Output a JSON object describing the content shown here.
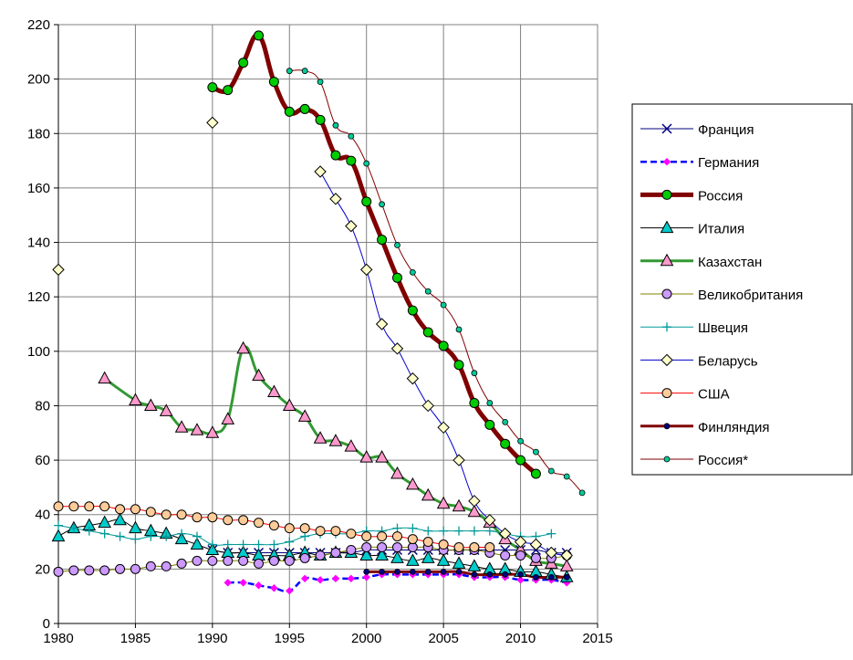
{
  "chart_data": {
    "type": "line",
    "title": "",
    "xlabel": "",
    "ylabel": "",
    "xlim": [
      1980,
      2015
    ],
    "ylim": [
      0,
      220
    ],
    "x_ticks": [
      1980,
      1985,
      1990,
      1995,
      2000,
      2005,
      2010,
      2015
    ],
    "y_ticks": [
      0,
      20,
      40,
      60,
      80,
      100,
      120,
      140,
      160,
      180,
      200,
      220
    ],
    "grid": true,
    "legend_position": "right",
    "series": [
      {
        "name": "Франция",
        "color": "#000080",
        "marker": "x",
        "marker_fill": "#000080",
        "line_width": 1,
        "points": [
          [
            1990,
            27
          ],
          [
            1991,
            26
          ],
          [
            1992,
            26
          ],
          [
            1993,
            26
          ],
          [
            1994,
            26
          ],
          [
            1995,
            26
          ],
          [
            1996,
            26
          ],
          [
            1997,
            26
          ],
          [
            1998,
            26
          ],
          [
            1999,
            26
          ],
          [
            2000,
            27
          ],
          [
            2001,
            27
          ],
          [
            2002,
            27
          ],
          [
            2003,
            27
          ],
          [
            2004,
            27
          ],
          [
            2005,
            27
          ],
          [
            2006,
            27
          ],
          [
            2007,
            27
          ],
          [
            2008,
            27
          ],
          [
            2009,
            27
          ],
          [
            2010,
            27
          ],
          [
            2011,
            27
          ],
          [
            2012,
            26
          ],
          [
            2013,
            26
          ]
        ]
      },
      {
        "name": "Германия",
        "color": "#0000ff",
        "marker": "diamond-small",
        "marker_fill": "#ff00ff",
        "line_width": 2.5,
        "dash": "7,4",
        "points": [
          [
            1991,
            15
          ],
          [
            1992,
            15
          ],
          [
            1993,
            14
          ],
          [
            1994,
            13
          ],
          [
            1995,
            12
          ],
          [
            1996,
            16.5
          ],
          [
            1997,
            16
          ],
          [
            1998,
            16.5
          ],
          [
            1999,
            16.5
          ],
          [
            2000,
            17
          ],
          [
            2001,
            18
          ],
          [
            2002,
            18
          ],
          [
            2003,
            18
          ],
          [
            2004,
            18
          ],
          [
            2005,
            18
          ],
          [
            2006,
            18
          ],
          [
            2007,
            17
          ],
          [
            2008,
            17
          ],
          [
            2009,
            17
          ],
          [
            2010,
            16
          ],
          [
            2011,
            16
          ],
          [
            2012,
            16
          ],
          [
            2013,
            15
          ]
        ]
      },
      {
        "name": "Россия",
        "color": "#800000",
        "marker": "circle",
        "marker_fill": "#00cc00",
        "line_width": 5,
        "points": [
          [
            1990,
            197
          ],
          [
            1991,
            196
          ],
          [
            1992,
            206
          ],
          [
            1993,
            216
          ],
          [
            1994,
            199
          ],
          [
            1995,
            188
          ],
          [
            1996,
            189
          ],
          [
            1997,
            185
          ],
          [
            1998,
            172
          ],
          [
            1999,
            170
          ],
          [
            2000,
            155
          ],
          [
            2001,
            141
          ],
          [
            2002,
            127
          ],
          [
            2003,
            115
          ],
          [
            2004,
            107
          ],
          [
            2005,
            102
          ],
          [
            2006,
            95
          ],
          [
            2007,
            81
          ],
          [
            2008,
            73
          ],
          [
            2009,
            66
          ],
          [
            2010,
            60
          ],
          [
            2011,
            55
          ]
        ]
      },
      {
        "name": "Италия",
        "color": "#000000",
        "marker": "triangle",
        "marker_fill": "#00cccc",
        "line_width": 1,
        "points": [
          [
            1980,
            32
          ],
          [
            1981,
            35
          ],
          [
            1982,
            36
          ],
          [
            1983,
            37
          ],
          [
            1984,
            38
          ],
          [
            1985,
            35
          ],
          [
            1986,
            34
          ],
          [
            1987,
            33
          ],
          [
            1988,
            31
          ],
          [
            1989,
            29
          ],
          [
            1990,
            27
          ],
          [
            1991,
            26
          ],
          [
            1992,
            26
          ],
          [
            1993,
            25
          ],
          [
            1994,
            25
          ],
          [
            1995,
            25
          ],
          [
            1996,
            26
          ],
          [
            1997,
            25
          ],
          [
            1998,
            26
          ],
          [
            1999,
            26
          ],
          [
            2000,
            25
          ],
          [
            2001,
            25
          ],
          [
            2002,
            24
          ],
          [
            2003,
            23
          ],
          [
            2004,
            24
          ],
          [
            2005,
            23
          ],
          [
            2006,
            22
          ],
          [
            2007,
            21
          ],
          [
            2008,
            20
          ],
          [
            2009,
            20
          ],
          [
            2010,
            19
          ],
          [
            2011,
            19
          ],
          [
            2012,
            18
          ],
          [
            2013,
            17
          ]
        ]
      },
      {
        "name": "Казахстан",
        "color": "#339933",
        "marker": "triangle",
        "marker_fill": "#ff99cc",
        "line_width": 3,
        "points": [
          [
            1983,
            90
          ],
          [
            1985,
            82
          ],
          [
            1986,
            80
          ],
          [
            1987,
            78
          ],
          [
            1988,
            72
          ],
          [
            1989,
            71
          ],
          [
            1990,
            70
          ],
          [
            1991,
            75
          ],
          [
            1992,
            101
          ],
          [
            1993,
            91
          ],
          [
            1994,
            85
          ],
          [
            1995,
            80
          ],
          [
            1996,
            76
          ],
          [
            1997,
            68
          ],
          [
            1998,
            67
          ],
          [
            1999,
            65
          ],
          [
            2000,
            61
          ],
          [
            2001,
            61
          ],
          [
            2002,
            55
          ],
          [
            2003,
            51
          ],
          [
            2004,
            47
          ],
          [
            2005,
            44
          ],
          [
            2006,
            43
          ],
          [
            2007,
            41
          ],
          [
            2008,
            37
          ],
          [
            2009,
            31
          ],
          [
            2010,
            27
          ],
          [
            2011,
            23
          ],
          [
            2012,
            22
          ],
          [
            2013,
            21
          ]
        ]
      },
      {
        "name": "Великобритания",
        "color": "#808000",
        "marker": "circle",
        "marker_fill": "#cc99ff",
        "line_width": 1,
        "points": [
          [
            1980,
            19
          ],
          [
            1981,
            19.5
          ],
          [
            1982,
            19.5
          ],
          [
            1983,
            19.5
          ],
          [
            1984,
            20
          ],
          [
            1985,
            20
          ],
          [
            1986,
            21
          ],
          [
            1987,
            21
          ],
          [
            1988,
            22
          ],
          [
            1989,
            23
          ],
          [
            1990,
            23
          ],
          [
            1991,
            23
          ],
          [
            1992,
            23
          ],
          [
            1993,
            22
          ],
          [
            1994,
            23
          ],
          [
            1995,
            23
          ],
          [
            1996,
            24
          ],
          [
            1997,
            25
          ],
          [
            1998,
            26
          ],
          [
            1999,
            27
          ],
          [
            2000,
            28
          ],
          [
            2001,
            28
          ],
          [
            2002,
            28
          ],
          [
            2003,
            28
          ],
          [
            2004,
            28
          ],
          [
            2005,
            27
          ],
          [
            2006,
            27
          ],
          [
            2007,
            27
          ],
          [
            2008,
            26
          ],
          [
            2009,
            25
          ],
          [
            2010,
            25
          ],
          [
            2011,
            24
          ],
          [
            2012,
            24
          ],
          [
            2013,
            25
          ]
        ]
      },
      {
        "name": "Швеция",
        "color": "#009999",
        "marker": "plus",
        "marker_fill": "#009999",
        "line_width": 1,
        "points": [
          [
            1980,
            36
          ],
          [
            1981,
            35
          ],
          [
            1982,
            34
          ],
          [
            1983,
            33
          ],
          [
            1984,
            32
          ],
          [
            1985,
            31
          ],
          [
            1986,
            32
          ],
          [
            1987,
            32
          ],
          [
            1988,
            33
          ],
          [
            1989,
            32
          ],
          [
            1990,
            29
          ],
          [
            1991,
            29
          ],
          [
            1992,
            29
          ],
          [
            1993,
            29
          ],
          [
            1994,
            29
          ],
          [
            1995,
            30
          ],
          [
            1996,
            32
          ],
          [
            1997,
            33
          ],
          [
            1998,
            33
          ],
          [
            1999,
            33
          ],
          [
            2000,
            34
          ],
          [
            2001,
            34
          ],
          [
            2002,
            35
          ],
          [
            2003,
            35
          ],
          [
            2004,
            34
          ],
          [
            2005,
            34
          ],
          [
            2006,
            34
          ],
          [
            2007,
            34
          ],
          [
            2008,
            34
          ],
          [
            2009,
            33
          ],
          [
            2010,
            32
          ],
          [
            2011,
            32
          ],
          [
            2012,
            33
          ]
        ]
      },
      {
        "name": "Беларусь",
        "color": "#0000cc",
        "marker": "diamond",
        "marker_fill": "#ffffcc",
        "line_width": 1,
        "points": [
          [
            1997,
            166
          ],
          [
            1998,
            156
          ],
          [
            1999,
            146
          ],
          [
            2000,
            130
          ],
          [
            2001,
            110
          ],
          [
            2002,
            101
          ],
          [
            2003,
            90
          ],
          [
            2004,
            80
          ],
          [
            2005,
            72
          ],
          [
            2006,
            60
          ],
          [
            2007,
            45
          ],
          [
            2008,
            38
          ],
          [
            2009,
            33
          ],
          [
            2010,
            30
          ],
          [
            2011,
            29
          ],
          [
            2012,
            26
          ],
          [
            2013,
            25
          ]
        ]
      },
      {
        "name": "США",
        "color": "#ff0000",
        "marker": "circle",
        "marker_fill": "#ffcc99",
        "line_width": 1,
        "points": [
          [
            1980,
            43
          ],
          [
            1981,
            43
          ],
          [
            1982,
            43
          ],
          [
            1983,
            43
          ],
          [
            1984,
            42
          ],
          [
            1985,
            42
          ],
          [
            1986,
            41
          ],
          [
            1987,
            40
          ],
          [
            1988,
            40
          ],
          [
            1989,
            39
          ],
          [
            1990,
            39
          ],
          [
            1991,
            38
          ],
          [
            1992,
            38
          ],
          [
            1993,
            37
          ],
          [
            1994,
            36
          ],
          [
            1995,
            35
          ],
          [
            1996,
            35
          ],
          [
            1997,
            34
          ],
          [
            1998,
            34
          ],
          [
            1999,
            33
          ],
          [
            2000,
            32
          ],
          [
            2001,
            32
          ],
          [
            2002,
            32
          ],
          [
            2003,
            31
          ],
          [
            2004,
            30
          ],
          [
            2005,
            29
          ],
          [
            2006,
            28
          ],
          [
            2007,
            28
          ],
          [
            2008,
            28
          ]
        ]
      },
      {
        "name": "Финляндия",
        "color": "#800000",
        "marker": "circle-small",
        "marker_fill": "#000080",
        "line_width": 3,
        "points": [
          [
            2000,
            19
          ],
          [
            2001,
            19
          ],
          [
            2002,
            19
          ],
          [
            2003,
            19
          ],
          [
            2004,
            19
          ],
          [
            2005,
            19
          ],
          [
            2006,
            19
          ],
          [
            2007,
            18
          ],
          [
            2008,
            18
          ],
          [
            2009,
            18
          ],
          [
            2010,
            18
          ],
          [
            2011,
            17
          ],
          [
            2012,
            17
          ],
          [
            2013,
            17
          ]
        ]
      },
      {
        "name": "Россия*",
        "color": "#800000",
        "marker": "circle-small",
        "marker_fill": "#00cc99",
        "line_width": 1,
        "points": [
          [
            1995,
            203
          ],
          [
            1996,
            203
          ],
          [
            1997,
            199
          ],
          [
            1998,
            183
          ],
          [
            1999,
            179
          ],
          [
            2000,
            169
          ],
          [
            2001,
            154
          ],
          [
            2002,
            139
          ],
          [
            2003,
            129
          ],
          [
            2004,
            122
          ],
          [
            2005,
            117
          ],
          [
            2006,
            108
          ],
          [
            2007,
            92
          ],
          [
            2008,
            81
          ],
          [
            2009,
            74
          ],
          [
            2010,
            67
          ],
          [
            2011,
            63
          ],
          [
            2012,
            56
          ],
          [
            2013,
            54
          ],
          [
            2014,
            48
          ]
        ]
      }
    ],
    "isolated_points": [
      {
        "series": "Беларусь",
        "x": 1990,
        "y": 184
      },
      {
        "series": "Беларусь",
        "x": 1980,
        "y": 130
      }
    ]
  }
}
